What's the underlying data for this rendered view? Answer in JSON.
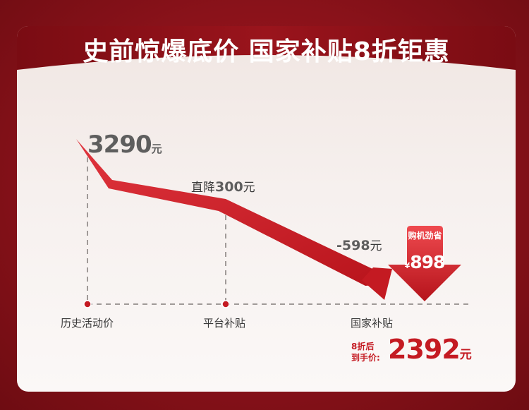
{
  "header": {
    "title": "史前惊爆底价 国家补贴8折钜惠"
  },
  "chart_data": {
    "type": "line",
    "categories": [
      "历史活动价",
      "平台补贴",
      "国家补贴"
    ],
    "values": [
      3290,
      2990,
      2392
    ],
    "annotations": {
      "start_price": "3290",
      "start_unit": "元",
      "step1_prefix": "直降",
      "step1_value": "300",
      "step1_unit": "元",
      "step2_value": "-598",
      "step2_unit": "元"
    }
  },
  "savings_badge": {
    "label": "购机劲省",
    "currency": "¥",
    "amount": "898"
  },
  "final_price": {
    "label_line1": "8折后",
    "label_line2": "到手价:",
    "amount": "2392",
    "unit": "元"
  },
  "colors": {
    "brand_red": "#c41a22",
    "dark_red": "#8a121a",
    "grey_text": "#5e5e5e"
  }
}
